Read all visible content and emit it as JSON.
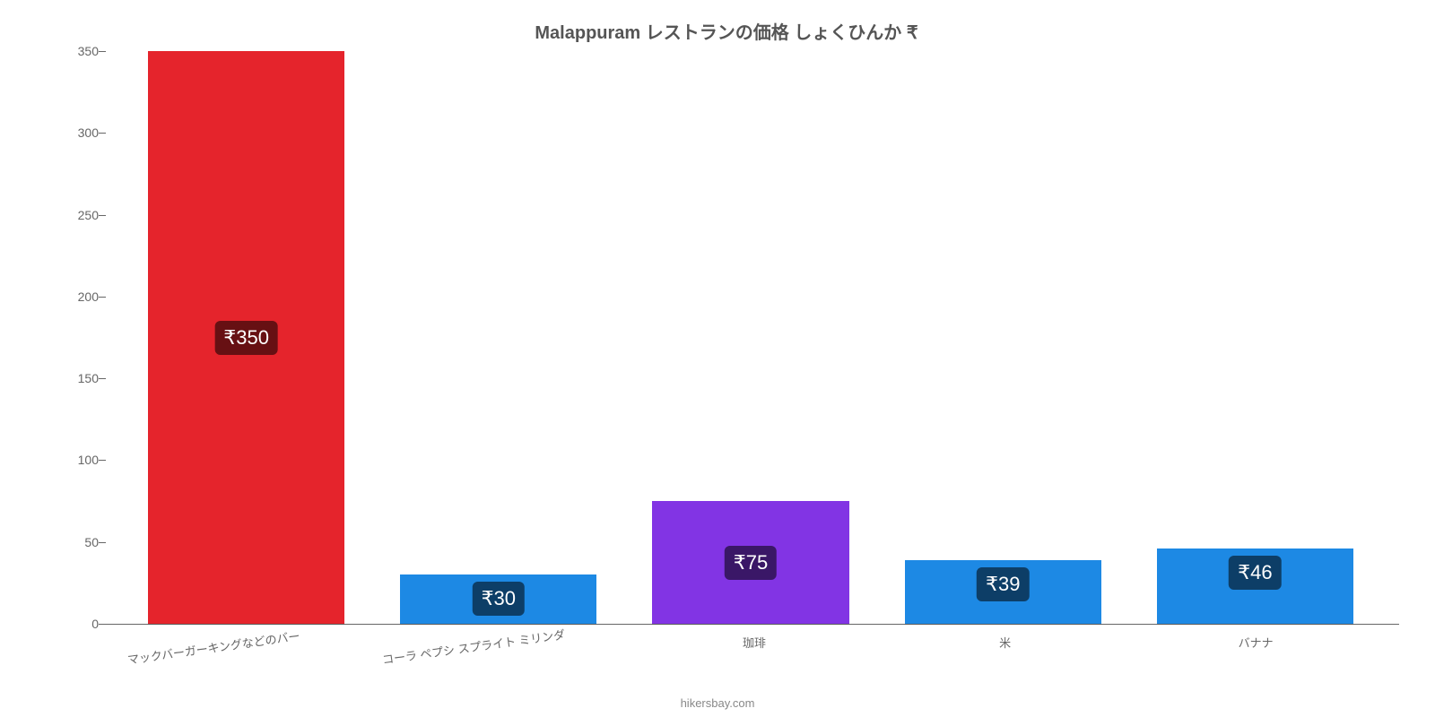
{
  "chart": {
    "type": "bar",
    "title": "Malappuram レストランの価格 しょくひんか ₹",
    "title_fontsize": 20,
    "title_color": "#555555",
    "background_color": "#ffffff",
    "ylim": [
      0,
      350
    ],
    "ytick_step": 50,
    "yticks": [
      0,
      50,
      100,
      150,
      200,
      250,
      300,
      350
    ],
    "axis_label_color": "#666666",
    "axis_label_fontsize": 14,
    "x_label_fontsize": 13,
    "bar_width_pct": 78,
    "categories": [
      "マックバーガーキングなどのバー",
      "コーラ ペプシ スプライト ミリンダ",
      "珈琲",
      "米",
      "バナナ"
    ],
    "values": [
      350,
      30,
      75,
      39,
      46
    ],
    "value_labels": [
      "₹350",
      "₹30",
      "₹75",
      "₹39",
      "₹46"
    ],
    "bar_colors": [
      "#e5242c",
      "#1d89e4",
      "#8234e4",
      "#1d89e4",
      "#1d89e4"
    ],
    "value_label_bg": "rgba(0,0,0,0.55)",
    "value_label_color": "#ffffff",
    "value_label_fontsize": 22,
    "attribution": "hikersbay.com",
    "attribution_color": "#888888"
  }
}
